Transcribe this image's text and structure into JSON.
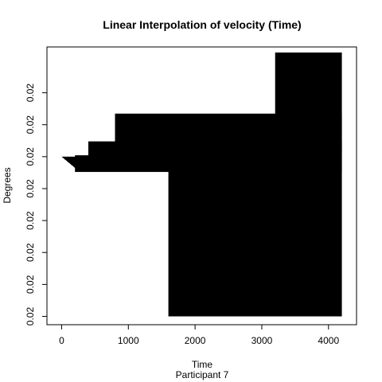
{
  "chart_data": {
    "type": "area",
    "title": "Linear Interpolation of velocity (Time)",
    "xlabel": "Time",
    "ylabel": "Degrees",
    "sublabel": "Participant  7",
    "xlim": [
      -220,
      4420
    ],
    "x_ticks": [
      0,
      1000,
      2000,
      3000,
      4000
    ],
    "x_tick_labels": [
      "0",
      "1000",
      "2000",
      "3000",
      "4000"
    ],
    "ylim": [
      0,
      100
    ],
    "y_ticks": [
      3,
      14.5,
      26,
      37.5,
      49,
      60.5,
      72,
      83.5
    ],
    "y_tick_labels": [
      "0.02",
      "0.02",
      "0.02",
      "0.02",
      "0.02",
      "0.02",
      "0.02",
      "0.02"
    ],
    "series": [
      {
        "color": "#000000",
        "blocks": [
          {
            "x0": 1600,
            "x1": 4200,
            "y0": 3,
            "y1": 58
          },
          {
            "x0": 200,
            "x1": 4200,
            "y0": 55,
            "y1": 61
          },
          {
            "x0": 400,
            "x1": 4200,
            "y0": 58,
            "y1": 66
          },
          {
            "x0": 800,
            "x1": 4200,
            "y0": 61,
            "y1": 76
          },
          {
            "x0": 3200,
            "x1": 4200,
            "y0": 62,
            "y1": 98
          }
        ],
        "steps": [
          {
            "x": 25,
            "y0": 60.2,
            "y1": 60.5
          },
          {
            "x": 50,
            "y0": 59.5,
            "y1": 60.5
          },
          {
            "x": 100,
            "y0": 58.5,
            "y1": 60.5
          },
          {
            "x": 150,
            "y0": 57.5,
            "y1": 60.5
          },
          {
            "x": 200,
            "y0": 56.5,
            "y1": 60.5
          }
        ]
      }
    ]
  }
}
